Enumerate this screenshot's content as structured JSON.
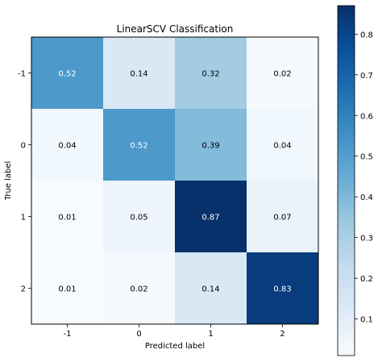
{
  "chart_data": {
    "type": "heatmap",
    "title": "LinearSCV Classification",
    "xlabel": "Predicted label",
    "ylabel": "True label",
    "x_categories": [
      "-1",
      "0",
      "1",
      "2"
    ],
    "y_categories": [
      "-1",
      "0",
      "1",
      "2"
    ],
    "values": [
      [
        0.52,
        0.14,
        0.32,
        0.02
      ],
      [
        0.04,
        0.52,
        0.39,
        0.04
      ],
      [
        0.01,
        0.05,
        0.87,
        0.07
      ],
      [
        0.01,
        0.02,
        0.14,
        0.83
      ]
    ],
    "cell_labels": [
      [
        "0.52",
        "0.14",
        "0.32",
        "0.02"
      ],
      [
        "0.04",
        "0.52",
        "0.39",
        "0.04"
      ],
      [
        "0.01",
        "0.05",
        "0.87",
        "0.07"
      ],
      [
        "0.01",
        "0.02",
        "0.14",
        "0.83"
      ]
    ],
    "colormap": "Blues",
    "vmin": 0.01,
    "vmax": 0.87,
    "colorbar_ticks": [
      "0.1",
      "0.2",
      "0.3",
      "0.4",
      "0.5",
      "0.6",
      "0.7",
      "0.8"
    ],
    "grid": false,
    "colorbar": "right"
  }
}
